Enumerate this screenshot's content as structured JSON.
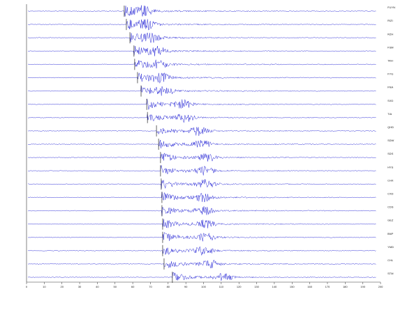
{
  "chart_data": {
    "type": "seismogram",
    "xlim": [
      0,
      200
    ],
    "xticks": [
      0,
      10,
      20,
      30,
      40,
      50,
      60,
      70,
      80,
      90,
      100,
      110,
      120,
      130,
      140,
      150,
      160,
      170,
      180,
      190,
      200
    ],
    "color": "#1010d0",
    "traces": [
      {
        "name": "FUYN",
        "p": 55.2,
        "s": 65.9
      },
      {
        "name": "RIZI",
        "p": 56.4,
        "s": 67.9
      },
      {
        "name": "RZH",
        "p": 58.4,
        "s": 69.8
      },
      {
        "name": "FSM",
        "p": 60.7,
        "s": 73.8
      },
      {
        "name": "TAH",
        "p": 61.1,
        "s": 75.0
      },
      {
        "name": "FYG",
        "p": 62.7,
        "s": 75.7
      },
      {
        "name": "FNA",
        "p": 64.7,
        "s": 77.7
      },
      {
        "name": "SXD",
        "p": 67.9,
        "s": 88.4
      },
      {
        "name": "TIA",
        "p": 68.3,
        "s": 89.6
      },
      {
        "name": "QHD",
        "p": 73.4,
        "s": 97.4
      },
      {
        "name": "SDW",
        "p": 74.6,
        "s": 98.6
      },
      {
        "name": "SDS",
        "p": 75.7,
        "s": 102.2
      },
      {
        "name": "HYS",
        "p": 75.7,
        "s": 100.6
      },
      {
        "name": "CHX",
        "p": 76.1,
        "s": 101.4
      },
      {
        "name": "CXD",
        "p": 76.5,
        "s": 100.2
      },
      {
        "name": "CDS",
        "p": 76.5,
        "s": 100.2
      },
      {
        "name": "GEZ",
        "p": 76.9,
        "s": 101.4
      },
      {
        "name": "BNP",
        "p": 76.9,
        "s": 101.4
      },
      {
        "name": "YMD",
        "p": 76.9,
        "s": 100.2
      },
      {
        "name": "CHL",
        "p": 77.7,
        "s": 103.4
      },
      {
        "name": "STM",
        "p": 82.4,
        "s": 111.2
      }
    ]
  }
}
